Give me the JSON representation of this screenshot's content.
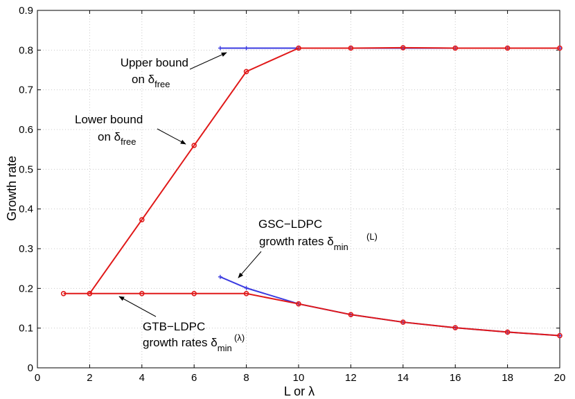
{
  "chart_data": {
    "type": "line",
    "title": "",
    "xlabel": "L or λ",
    "ylabel": "Growth rate",
    "xlim": [
      0,
      20
    ],
    "ylim": [
      0,
      0.9
    ],
    "xticks": [
      0,
      2,
      4,
      6,
      8,
      10,
      12,
      14,
      16,
      18,
      20
    ],
    "yticks": [
      0,
      0.1,
      0.2,
      0.3,
      0.4,
      0.5,
      0.6,
      0.7,
      0.8,
      0.9
    ],
    "xtick_labels": [
      "0",
      "2",
      "4",
      "6",
      "8",
      "10",
      "12",
      "14",
      "16",
      "18",
      "20"
    ],
    "ytick_labels": [
      "0",
      "0.1",
      "0.2",
      "0.3",
      "0.4",
      "0.5",
      "0.6",
      "0.7",
      "0.8",
      "0.9"
    ],
    "grid": true,
    "series": [
      {
        "name": "Upper bound on δfree",
        "color": "#3a3ae0",
        "marker": "plus",
        "x": [
          7,
          8,
          10,
          12,
          14,
          16,
          18,
          20
        ],
        "y": [
          0.805,
          0.805,
          0.805,
          0.805,
          0.805,
          0.805,
          0.805,
          0.805
        ]
      },
      {
        "name": "Lower bound on δfree",
        "color": "#e01818",
        "marker": "circle",
        "x": [
          2,
          4,
          6,
          8,
          10,
          12,
          14,
          16,
          18,
          20
        ],
        "y": [
          0.187,
          0.373,
          0.56,
          0.746,
          0.805,
          0.805,
          0.806,
          0.805,
          0.805,
          0.805
        ]
      },
      {
        "name": "GSC-LDPC growth rates δmin(L)",
        "color": "#3a3ae0",
        "marker": "plus",
        "x": [
          7,
          8,
          10,
          12,
          14,
          16,
          18,
          20
        ],
        "y": [
          0.229,
          0.201,
          0.161,
          0.134,
          0.115,
          0.101,
          0.09,
          0.081
        ]
      },
      {
        "name": "GTB-LDPC growth rates δmin(λ)",
        "color": "#e01818",
        "marker": "circle",
        "x": [
          1,
          2,
          4,
          6,
          8,
          10,
          12,
          14,
          16,
          18,
          20
        ],
        "y": [
          0.187,
          0.187,
          0.187,
          0.187,
          0.187,
          0.161,
          0.134,
          0.115,
          0.101,
          0.09,
          0.081
        ]
      }
    ],
    "annotations": [
      {
        "id": "upper",
        "lines": [
          "Upper bound",
          "on δ"
        ],
        "subscript": "free",
        "arrow_to": [
          7.0,
          0.805
        ]
      },
      {
        "id": "lower",
        "lines": [
          "Lower bound",
          "on δ"
        ],
        "subscript": "free",
        "arrow_to": [
          5.8,
          0.56
        ]
      },
      {
        "id": "gsc",
        "lines": [
          "GSC−LDPC",
          "growth rates  δ"
        ],
        "subscript": "min",
        "superscript": "(L)",
        "arrow_to": [
          7.65,
          0.222
        ]
      },
      {
        "id": "gtb",
        "lines": [
          "GTB−LDPC",
          "growth rates  δ"
        ],
        "subscript": "min",
        "superscript": "(λ)",
        "arrow_to": [
          3.1,
          0.176
        ]
      }
    ]
  }
}
